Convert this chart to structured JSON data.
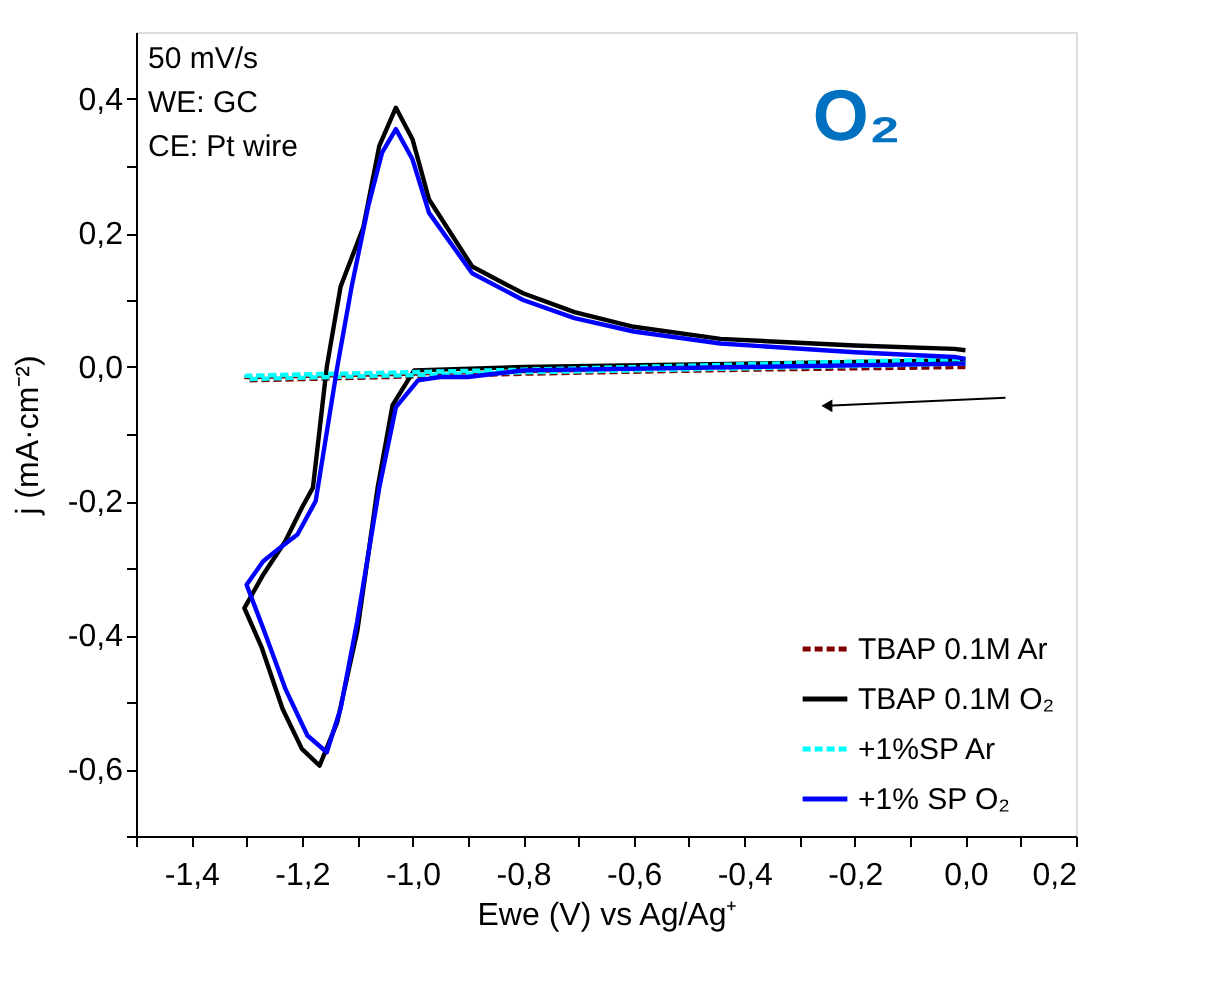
{
  "chart_data": {
    "type": "line",
    "xlabel": "Ewe (V) vs Ag/Ag⁺",
    "ylabel": "j (mA·cm⁻²)",
    "xlim": [
      -1.5,
      0.2
    ],
    "xticks": [
      {
        "value": -1.5,
        "label": null
      },
      {
        "value": -1.4,
        "label": "-1,4"
      },
      {
        "value": -1.3,
        "label": null
      },
      {
        "value": -1.2,
        "label": "-1,2"
      },
      {
        "value": -1.1,
        "label": null
      },
      {
        "value": -1.0,
        "label": "-1,0"
      },
      {
        "value": -0.9,
        "label": null
      },
      {
        "value": -0.8,
        "label": "-0,8"
      },
      {
        "value": -0.7,
        "label": null
      },
      {
        "value": -0.6,
        "label": "-0,6"
      },
      {
        "value": -0.5,
        "label": null
      },
      {
        "value": -0.4,
        "label": "-0,4"
      },
      {
        "value": -0.3,
        "label": null
      },
      {
        "value": -0.2,
        "label": "-0,2"
      },
      {
        "value": -0.1,
        "label": null
      },
      {
        "value": 0.0,
        "label": "0,0"
      },
      {
        "value": 0.1,
        "label": null
      },
      {
        "value": 0.2,
        "label": "0,2"
      }
    ],
    "ylim": [
      -0.7,
      0.5
    ],
    "yticks": [
      {
        "value": -0.7,
        "label": null
      },
      {
        "value": -0.6,
        "label": "-0,6"
      },
      {
        "value": -0.5,
        "label": null
      },
      {
        "value": -0.4,
        "label": "-0,4"
      },
      {
        "value": -0.3,
        "label": null
      },
      {
        "value": -0.2,
        "label": "-0,2"
      },
      {
        "value": -0.1,
        "label": null
      },
      {
        "value": 0.0,
        "label": "0,0"
      },
      {
        "value": 0.1,
        "label": null
      },
      {
        "value": 0.2,
        "label": "0,2"
      },
      {
        "value": 0.3,
        "label": null
      },
      {
        "value": 0.4,
        "label": "0,4"
      }
    ],
    "grid": false,
    "legend": "bottom right",
    "marker": "none",
    "annotations": [
      "50 mV/s",
      "WE: GC",
      "CE: Pt wire",
      "O₂"
    ],
    "series": [
      {
        "name": "TBAP 0.1M Ar",
        "color": "#800000",
        "line_style": "dashed",
        "x": [
          0.0,
          -0.4,
          -0.8,
          -1.3,
          -1.3,
          -0.8,
          -0.4,
          0.0
        ],
        "values": [
          0.0,
          -0.004,
          -0.01,
          -0.02,
          -0.015,
          -0.006,
          0.002,
          0.01
        ]
      },
      {
        "name": "TBAP 0.1M O₂",
        "color": "#000000",
        "line_style": "solid",
        "x": [
          0.0,
          -0.4,
          -0.8,
          -0.997,
          -1.036,
          -1.063,
          -1.08,
          -1.1,
          -1.136,
          -1.168,
          -1.2,
          -1.235,
          -1.273,
          -1.304,
          -1.27,
          -1.23,
          -1.2,
          -1.18,
          -1.155,
          -1.13,
          -1.089,
          -1.06,
          -1.03,
          -1.0,
          -0.97,
          -0.892,
          -0.8,
          -0.707,
          -0.6,
          -0.443,
          -0.2,
          -0.02,
          0.0
        ],
        "values": [
          0.01,
          0.005,
          0.0,
          -0.005,
          -0.057,
          -0.18,
          -0.28,
          -0.395,
          -0.53,
          -0.595,
          -0.57,
          -0.51,
          -0.418,
          -0.36,
          -0.31,
          -0.26,
          -0.21,
          -0.18,
          0.0,
          0.12,
          0.208,
          0.33,
          0.387,
          0.34,
          0.25,
          0.15,
          0.11,
          0.082,
          0.06,
          0.042,
          0.032,
          0.027,
          0.025
        ]
      },
      {
        "name": "+1%SP Ar",
        "color": "#00ffff",
        "line_style": "dashed",
        "x": [
          0.0,
          -0.4,
          -0.8,
          -1.3,
          -1.3,
          -0.8,
          -0.4,
          0.0
        ],
        "values": [
          0.005,
          -0.002,
          -0.008,
          -0.018,
          -0.013,
          -0.004,
          0.004,
          0.012
        ]
      },
      {
        "name": "+1% SP O₂",
        "color": "#0000ff",
        "line_style": "solid",
        "x": [
          0.0,
          -0.4,
          -0.8,
          -0.9,
          -0.95,
          -0.99,
          -1.03,
          -1.06,
          -1.08,
          -1.1,
          -1.13,
          -1.155,
          -1.19,
          -1.23,
          -1.27,
          -1.3,
          -1.27,
          -1.24,
          -1.208,
          -1.175,
          -1.136,
          -1.11,
          -1.08,
          -1.055,
          -1.03,
          -1.0,
          -0.97,
          -0.892,
          -0.8,
          -0.707,
          -0.6,
          -0.443,
          -0.2,
          -0.02,
          0.0
        ],
        "values": [
          0.005,
          0.0,
          -0.005,
          -0.015,
          -0.015,
          -0.02,
          -0.06,
          -0.18,
          -0.28,
          -0.38,
          -0.51,
          -0.575,
          -0.55,
          -0.48,
          -0.39,
          -0.325,
          -0.29,
          -0.27,
          -0.25,
          -0.2,
          0.0,
          0.12,
          0.24,
          0.32,
          0.355,
          0.31,
          0.23,
          0.14,
          0.1,
          0.073,
          0.053,
          0.035,
          0.022,
          0.015,
          0.012
        ]
      }
    ]
  }
}
